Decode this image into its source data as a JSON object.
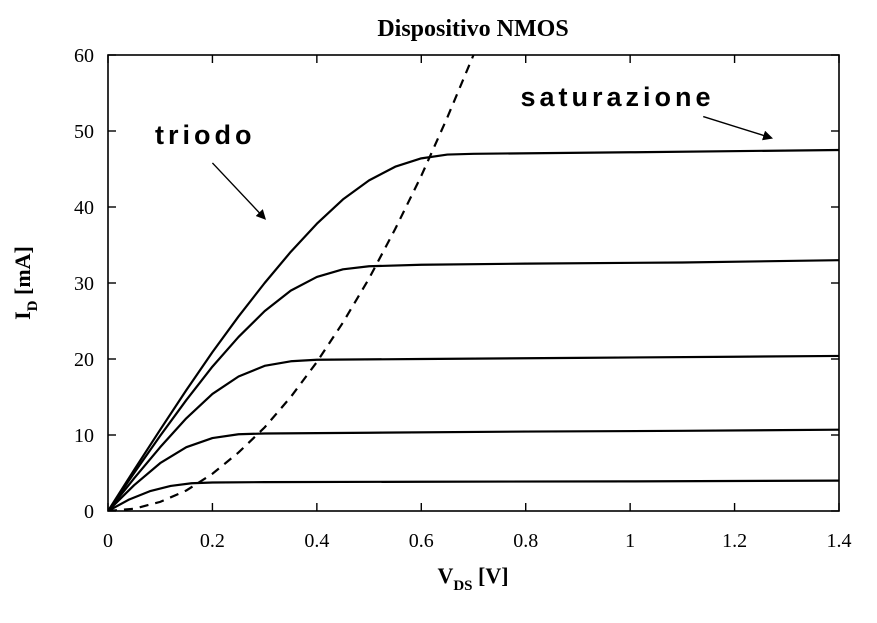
{
  "chart_data": {
    "type": "line",
    "title": "Dispositivo NMOS",
    "xlabel": {
      "main": "V",
      "sub": "DS",
      "unit": " [V]"
    },
    "ylabel": {
      "main": "I",
      "sub": "D",
      "unit": " [mA]"
    },
    "xlim": [
      0,
      1.4
    ],
    "ylim": [
      0,
      60
    ],
    "xticks": [
      {
        "value": 0,
        "label": "0"
      },
      {
        "value": 0.2,
        "label": "0.2"
      },
      {
        "value": 0.4,
        "label": "0.4"
      },
      {
        "value": 0.6,
        "label": "0.6"
      },
      {
        "value": 0.8,
        "label": "0.8"
      },
      {
        "value": 1.0,
        "label": "1"
      },
      {
        "value": 1.2,
        "label": "1.2"
      },
      {
        "value": 1.4,
        "label": "1.4"
      }
    ],
    "yticks": [
      {
        "value": 0,
        "label": "0"
      },
      {
        "value": 10,
        "label": "10"
      },
      {
        "value": 20,
        "label": "20"
      },
      {
        "value": 30,
        "label": "30"
      },
      {
        "value": 40,
        "label": "40"
      },
      {
        "value": 50,
        "label": "50"
      },
      {
        "value": 60,
        "label": "60"
      }
    ],
    "grid": false,
    "series": [
      {
        "points": [
          [
            0,
            0
          ],
          [
            0.04,
            1.5
          ],
          [
            0.08,
            2.6
          ],
          [
            0.12,
            3.3
          ],
          [
            0.16,
            3.65
          ],
          [
            0.2,
            3.75
          ],
          [
            0.3,
            3.8
          ],
          [
            0.6,
            3.85
          ],
          [
            1.0,
            3.9
          ],
          [
            1.4,
            4.0
          ]
        ]
      },
      {
        "points": [
          [
            0,
            0
          ],
          [
            0.05,
            3.4
          ],
          [
            0.1,
            6.3
          ],
          [
            0.15,
            8.4
          ],
          [
            0.2,
            9.6
          ],
          [
            0.25,
            10.1
          ],
          [
            0.3,
            10.2
          ],
          [
            0.5,
            10.3
          ],
          [
            0.8,
            10.45
          ],
          [
            1.1,
            10.55
          ],
          [
            1.4,
            10.7
          ]
        ]
      },
      {
        "points": [
          [
            0,
            0
          ],
          [
            0.05,
            4.3
          ],
          [
            0.1,
            8.4
          ],
          [
            0.15,
            12.2
          ],
          [
            0.2,
            15.4
          ],
          [
            0.25,
            17.7
          ],
          [
            0.3,
            19.1
          ],
          [
            0.35,
            19.7
          ],
          [
            0.4,
            19.9
          ],
          [
            0.6,
            20.0
          ],
          [
            0.9,
            20.15
          ],
          [
            1.2,
            20.3
          ],
          [
            1.4,
            20.4
          ]
        ]
      },
      {
        "points": [
          [
            0,
            0
          ],
          [
            0.05,
            5.0
          ],
          [
            0.1,
            9.9
          ],
          [
            0.15,
            14.6
          ],
          [
            0.2,
            19.0
          ],
          [
            0.25,
            22.9
          ],
          [
            0.3,
            26.3
          ],
          [
            0.35,
            29.0
          ],
          [
            0.4,
            30.8
          ],
          [
            0.45,
            31.8
          ],
          [
            0.5,
            32.2
          ],
          [
            0.6,
            32.4
          ],
          [
            0.8,
            32.55
          ],
          [
            1.1,
            32.7
          ],
          [
            1.4,
            33.0
          ]
        ]
      },
      {
        "points": [
          [
            0,
            0
          ],
          [
            0.05,
            5.4
          ],
          [
            0.1,
            10.7
          ],
          [
            0.15,
            15.9
          ],
          [
            0.2,
            20.9
          ],
          [
            0.25,
            25.6
          ],
          [
            0.3,
            30.0
          ],
          [
            0.35,
            34.1
          ],
          [
            0.4,
            37.8
          ],
          [
            0.45,
            41.0
          ],
          [
            0.5,
            43.5
          ],
          [
            0.55,
            45.3
          ],
          [
            0.6,
            46.4
          ],
          [
            0.65,
            46.9
          ],
          [
            0.7,
            47.0
          ],
          [
            1.0,
            47.2
          ],
          [
            1.4,
            47.5
          ]
        ]
      }
    ],
    "boundary": {
      "points": [
        [
          0,
          0
        ],
        [
          0.05,
          0.3
        ],
        [
          0.1,
          1.2
        ],
        [
          0.15,
          2.7
        ],
        [
          0.2,
          4.9
        ],
        [
          0.25,
          7.7
        ],
        [
          0.3,
          11.0
        ],
        [
          0.35,
          15.0
        ],
        [
          0.4,
          19.6
        ],
        [
          0.45,
          24.8
        ],
        [
          0.5,
          30.6
        ],
        [
          0.55,
          37.1
        ],
        [
          0.6,
          44.1
        ],
        [
          0.65,
          51.8
        ],
        [
          0.7,
          60.0
        ]
      ],
      "style": "dashed"
    },
    "annotations": [
      {
        "text": "triodo",
        "anchor": [
          0.09,
          48.3
        ],
        "arrow_from": [
          0.2,
          45.8
        ],
        "arrow_to": [
          0.3,
          38.5
        ]
      },
      {
        "text": "saturazione",
        "anchor": [
          0.79,
          53.3
        ],
        "arrow_from": [
          1.14,
          51.9
        ],
        "arrow_to": [
          1.27,
          49.1
        ]
      }
    ]
  }
}
